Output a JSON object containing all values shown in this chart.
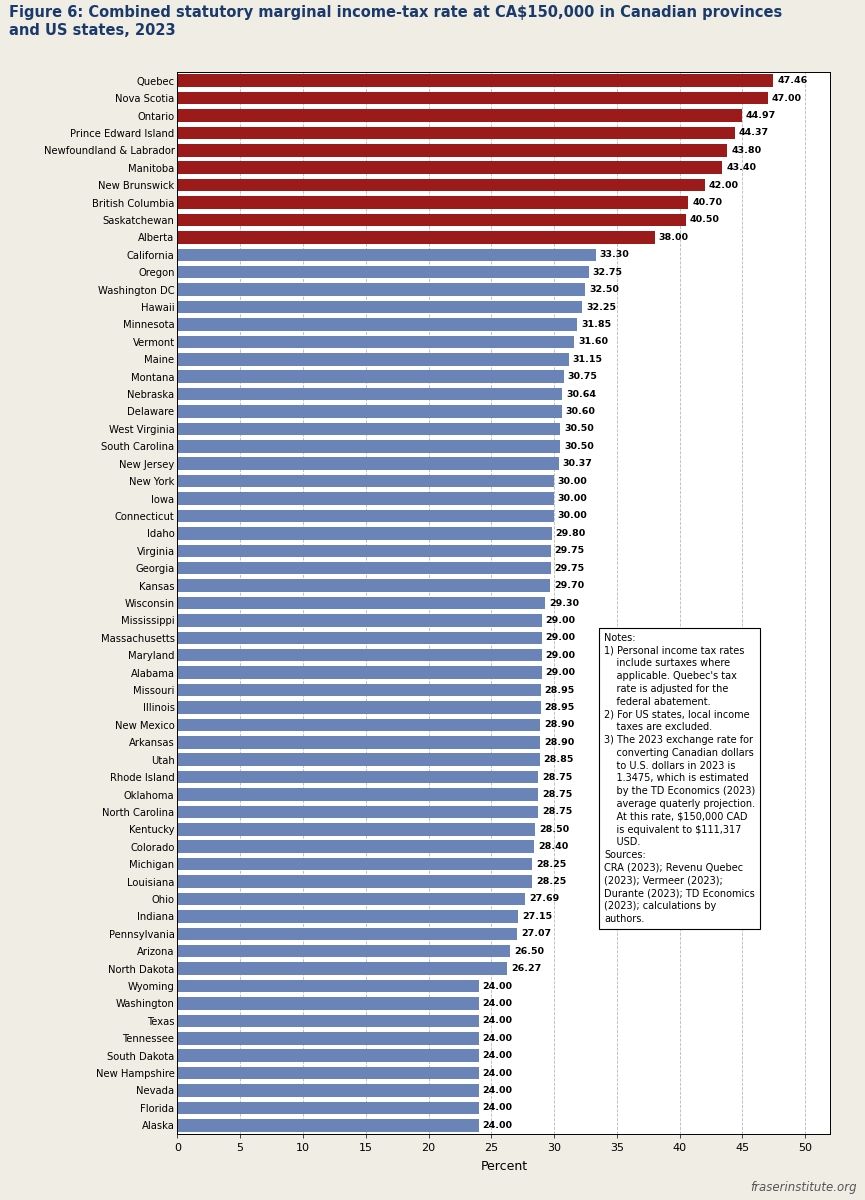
{
  "title": "Figure 6: Combined statutory marginal income-tax rate at CA$150,000 in Canadian provinces\nand US states, 2023",
  "title_color": "#1a3a6b",
  "xlabel": "Percent",
  "categories": [
    "Quebec",
    "Nova Scotia",
    "Ontario",
    "Prince Edward Island",
    "Newfoundland & Labrador",
    "Manitoba",
    "New Brunswick",
    "British Columbia",
    "Saskatchewan",
    "Alberta",
    "California",
    "Oregon",
    "Washington DC",
    "Hawaii",
    "Minnesota",
    "Vermont",
    "Maine",
    "Montana",
    "Nebraska",
    "Delaware",
    "West Virginia",
    "South Carolina",
    "New Jersey",
    "New York",
    "Iowa",
    "Connecticut",
    "Idaho",
    "Virginia",
    "Georgia",
    "Kansas",
    "Wisconsin",
    "Mississippi",
    "Massachusetts",
    "Maryland",
    "Alabama",
    "Missouri",
    "Illinois",
    "New Mexico",
    "Arkansas",
    "Utah",
    "Rhode Island",
    "Oklahoma",
    "North Carolina",
    "Kentucky",
    "Colorado",
    "Michigan",
    "Louisiana",
    "Ohio",
    "Indiana",
    "Pennsylvania",
    "Arizona",
    "North Dakota",
    "Wyoming",
    "Washington",
    "Texas",
    "Tennessee",
    "South Dakota",
    "New Hampshire",
    "Nevada",
    "Florida",
    "Alaska"
  ],
  "values": [
    47.46,
    47.0,
    44.97,
    44.37,
    43.8,
    43.4,
    42.0,
    40.7,
    40.5,
    38.0,
    33.3,
    32.75,
    32.5,
    32.25,
    31.85,
    31.6,
    31.15,
    30.75,
    30.64,
    30.6,
    30.5,
    30.5,
    30.37,
    30.0,
    30.0,
    30.0,
    29.8,
    29.75,
    29.75,
    29.7,
    29.3,
    29.0,
    29.0,
    29.0,
    29.0,
    28.95,
    28.95,
    28.9,
    28.9,
    28.85,
    28.75,
    28.75,
    28.75,
    28.5,
    28.4,
    28.25,
    28.25,
    27.69,
    27.15,
    27.07,
    26.5,
    26.27,
    24.0,
    24.0,
    24.0,
    24.0,
    24.0,
    24.0,
    24.0,
    24.0,
    24.0
  ],
  "canadian_provinces": [
    "Quebec",
    "Nova Scotia",
    "Ontario",
    "Prince Edward Island",
    "Newfoundland & Labrador",
    "Manitoba",
    "New Brunswick",
    "British Columbia",
    "Saskatchewan",
    "Alberta"
  ],
  "bar_color_canada": "#9b1a1a",
  "bar_color_us": "#6b84b8",
  "xlim": [
    0,
    52
  ],
  "xticks": [
    0,
    5,
    10,
    15,
    20,
    25,
    30,
    35,
    40,
    45,
    50
  ],
  "footer_text": "fraserinstitute.org",
  "outer_bg": "#f0ede4",
  "chart_bg": "#ffffff"
}
